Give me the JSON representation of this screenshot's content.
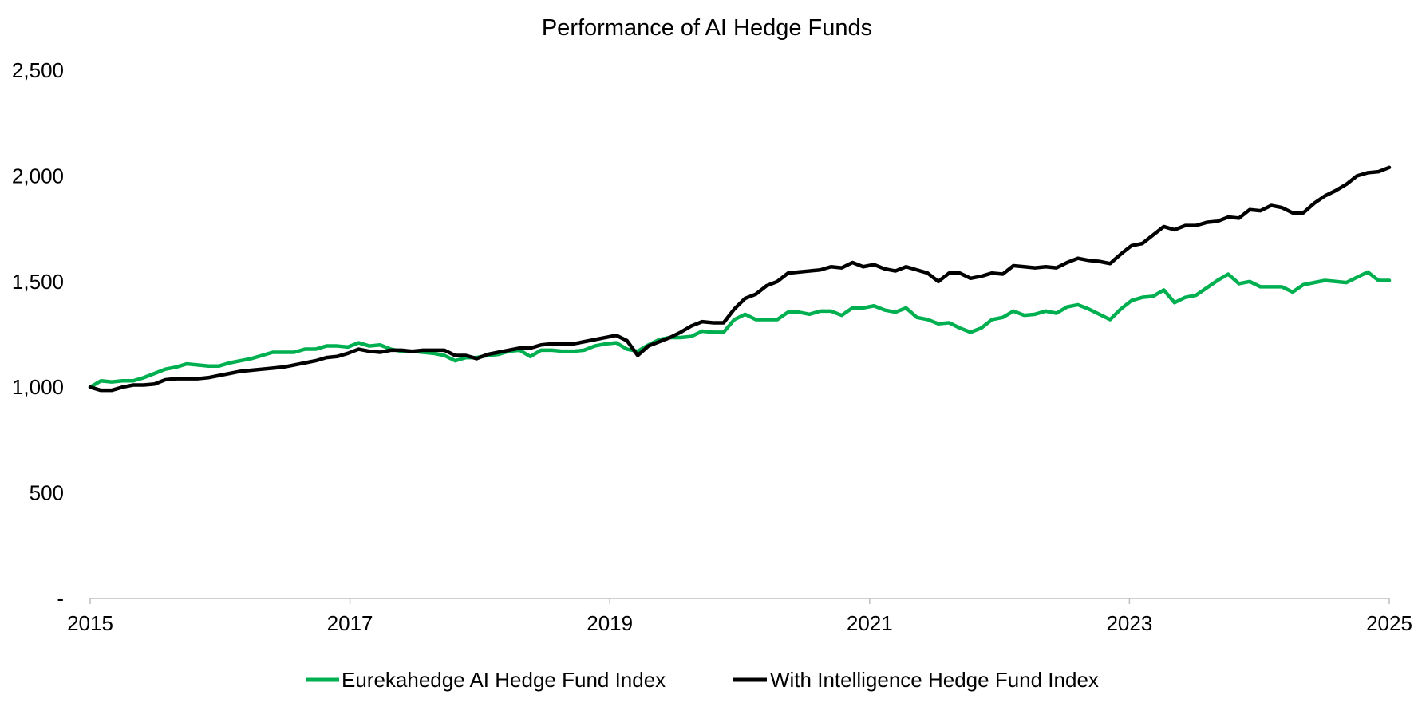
{
  "chart_data": {
    "type": "line",
    "title": "Performance of AI Hedge Funds",
    "xlabel": "",
    "ylabel": "",
    "x_start": "2015-01",
    "x_end": "2025-01",
    "xlim": [
      2015,
      2025
    ],
    "ylim": [
      0,
      2500
    ],
    "x_ticks": [
      "2015",
      "2017",
      "2019",
      "2021",
      "2023",
      "2025"
    ],
    "y_ticks": [
      "-",
      "500",
      "1,000",
      "1,500",
      "2,000",
      "2,500"
    ],
    "grid": false,
    "legend_position": "bottom",
    "series": [
      {
        "name": "Eurekahedge AI Hedge Fund Index",
        "color": "#00b050",
        "values": [
          1000,
          1030,
          1025,
          1030,
          1030,
          1045,
          1065,
          1085,
          1095,
          1110,
          1105,
          1100,
          1100,
          1115,
          1125,
          1135,
          1150,
          1165,
          1165,
          1165,
          1180,
          1180,
          1195,
          1195,
          1190,
          1210,
          1195,
          1200,
          1180,
          1170,
          1170,
          1165,
          1160,
          1150,
          1125,
          1140,
          1140,
          1150,
          1155,
          1170,
          1175,
          1145,
          1175,
          1175,
          1170,
          1170,
          1175,
          1195,
          1205,
          1210,
          1180,
          1170,
          1200,
          1225,
          1235,
          1235,
          1240,
          1265,
          1260,
          1260,
          1320,
          1345,
          1320,
          1320,
          1320,
          1355,
          1355,
          1345,
          1360,
          1360,
          1340,
          1375,
          1375,
          1385,
          1365,
          1355,
          1375,
          1330,
          1320,
          1300,
          1305,
          1280,
          1260,
          1280,
          1320,
          1330,
          1360,
          1340,
          1345,
          1360,
          1350,
          1380,
          1390,
          1370,
          1345,
          1320,
          1370,
          1410,
          1425,
          1430,
          1460,
          1400,
          1425,
          1435,
          1470,
          1505,
          1535,
          1490,
          1500,
          1475,
          1475,
          1475,
          1450,
          1485,
          1495,
          1505,
          1500,
          1495,
          1520,
          1545,
          1505,
          1505
        ]
      },
      {
        "name": "With Intelligence Hedge Fund Index",
        "color": "#000000",
        "values": [
          1000,
          985,
          985,
          1000,
          1010,
          1010,
          1015,
          1035,
          1040,
          1040,
          1040,
          1045,
          1055,
          1065,
          1075,
          1080,
          1085,
          1090,
          1095,
          1105,
          1115,
          1125,
          1140,
          1145,
          1160,
          1180,
          1170,
          1165,
          1175,
          1175,
          1170,
          1175,
          1175,
          1175,
          1150,
          1150,
          1135,
          1155,
          1165,
          1175,
          1185,
          1185,
          1200,
          1205,
          1205,
          1205,
          1215,
          1225,
          1235,
          1245,
          1220,
          1150,
          1195,
          1215,
          1235,
          1260,
          1290,
          1310,
          1305,
          1305,
          1370,
          1420,
          1440,
          1480,
          1500,
          1540,
          1545,
          1550,
          1555,
          1570,
          1565,
          1590,
          1570,
          1580,
          1560,
          1550,
          1570,
          1555,
          1540,
          1500,
          1540,
          1540,
          1515,
          1525,
          1540,
          1535,
          1575,
          1570,
          1565,
          1570,
          1565,
          1590,
          1610,
          1600,
          1595,
          1585,
          1630,
          1670,
          1680,
          1720,
          1760,
          1745,
          1765,
          1765,
          1780,
          1785,
          1805,
          1800,
          1840,
          1835,
          1860,
          1850,
          1825,
          1825,
          1870,
          1905,
          1930,
          1960,
          2000,
          2015,
          2020,
          2040
        ]
      }
    ]
  }
}
